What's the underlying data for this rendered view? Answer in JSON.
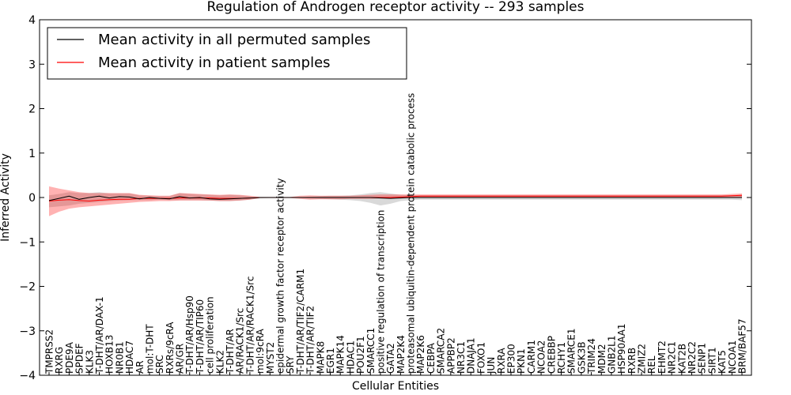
{
  "chart_data": {
    "type": "line",
    "title": "Regulation of Androgen receptor activity -- 293 samples",
    "xlabel": "Cellular Entities",
    "ylabel": "Inferred Activity",
    "ylim": [
      -4,
      4
    ],
    "yticks": [
      "4",
      "3",
      "2",
      "1",
      "0",
      "−1",
      "−2",
      "−3",
      "−4"
    ],
    "categories": [
      "TMPRSS2",
      "RXRG",
      "PDE9A",
      "SPDEF",
      "KLK3",
      "T-DHT/AR/DAX-1",
      "HOXB13",
      "NR0B1",
      "HDAC7",
      "AR",
      "mol:T-DHT",
      "SRC",
      "RXRs/9cRA",
      "AR/GR",
      "T-DHT/AR/Hsp90",
      "T-DHT/AR/TIP60",
      "cell proliferation",
      "KLK2",
      "T-DHT/AR",
      "AR/RACK1/Src",
      "T-DHT/AR/RACK1/Src",
      "mol:9cRA",
      "MYST2",
      "epidermal growth factor receptor activity",
      "SRY",
      "T-DHT/AR/TIF2/CARM1",
      "T-DHT/AR/TIF2",
      "MAPK8",
      "EGR1",
      "MAPK14",
      "HDAC1",
      "POU2F1",
      "SMARCC1",
      "positive regulation of transcription",
      "GATA2",
      "MAP2K4",
      "proteasomal ubiquitin-dependent protein catabolic process",
      "MAP2K6",
      "CEBPA",
      "SMARCA2",
      "APPBP2",
      "NR3C1",
      "DNAJA1",
      "FOXO1",
      "JUN",
      "RXRA",
      "EP300",
      "PKN1",
      "CARM1",
      "NCOA2",
      "CREBBP",
      "RCHY1",
      "SMARCE1",
      "GSK3B",
      "TRIM24",
      "MDM2",
      "GNB2L1",
      "HSP90AA1",
      "RXRB",
      "ZMIZ2",
      "REL",
      "EHMT2",
      "NR2C1",
      "KAT2B",
      "NR2C2",
      "SENP1",
      "SIRT1",
      "KAT5",
      "NCOA1",
      "BRM/BAF57"
    ],
    "series": [
      {
        "name": "Mean activity in all permuted samples",
        "color": "#000000",
        "values": [
          -0.07,
          -0.02,
          0.03,
          -0.04,
          0.0,
          0.03,
          -0.01,
          0.02,
          0.01,
          -0.03,
          0.0,
          -0.02,
          -0.03,
          0.02,
          -0.01,
          0.0,
          -0.03,
          -0.04,
          -0.03,
          -0.02,
          -0.01,
          0.0,
          0.0,
          0.0,
          0.0,
          0.0,
          0.0,
          0.0,
          0.0,
          0.0,
          0.0,
          0.0,
          0.0,
          -0.01,
          -0.02,
          -0.01,
          0.0,
          0.0,
          0.0,
          0.0,
          0.0,
          0.0,
          0.0,
          0.0,
          0.0,
          0.0,
          0.0,
          0.0,
          0.0,
          0.0,
          0.0,
          0.0,
          0.0,
          0.0,
          0.0,
          0.0,
          0.0,
          0.0,
          0.0,
          0.0,
          0.0,
          0.0,
          0.0,
          0.0,
          0.0,
          0.0,
          0.0,
          0.0,
          0.0,
          0.0
        ],
        "lower": [
          -0.22,
          -0.2,
          -0.18,
          -0.14,
          -0.12,
          -0.1,
          -0.08,
          -0.07,
          -0.06,
          -0.06,
          -0.06,
          -0.05,
          -0.06,
          -0.06,
          -0.06,
          -0.06,
          -0.07,
          -0.08,
          -0.08,
          -0.07,
          -0.05,
          -0.02,
          -0.01,
          -0.01,
          -0.01,
          -0.01,
          -0.02,
          -0.03,
          -0.04,
          -0.05,
          -0.06,
          -0.08,
          -0.12,
          -0.18,
          -0.14,
          -0.08,
          -0.06,
          -0.05,
          -0.05,
          -0.05,
          -0.05,
          -0.05,
          -0.05,
          -0.05,
          -0.05,
          -0.05,
          -0.05,
          -0.05,
          -0.05,
          -0.05,
          -0.05,
          -0.05,
          -0.05,
          -0.05,
          -0.05,
          -0.05,
          -0.05,
          -0.05,
          -0.05,
          -0.05,
          -0.05,
          -0.05,
          -0.05,
          -0.05,
          -0.05,
          -0.05,
          -0.05,
          -0.05,
          -0.05,
          -0.06
        ],
        "upper": [
          0.05,
          0.08,
          0.12,
          0.1,
          0.1,
          0.12,
          0.09,
          0.09,
          0.09,
          0.05,
          0.04,
          0.03,
          0.03,
          0.1,
          0.08,
          0.07,
          0.06,
          0.05,
          0.06,
          0.05,
          0.03,
          0.01,
          0.01,
          0.01,
          0.01,
          0.01,
          0.02,
          0.03,
          0.04,
          0.04,
          0.05,
          0.07,
          0.1,
          0.12,
          0.09,
          0.06,
          0.05,
          0.05,
          0.05,
          0.05,
          0.05,
          0.05,
          0.05,
          0.05,
          0.05,
          0.05,
          0.05,
          0.05,
          0.05,
          0.05,
          0.05,
          0.05,
          0.05,
          0.05,
          0.05,
          0.05,
          0.05,
          0.05,
          0.05,
          0.05,
          0.05,
          0.05,
          0.05,
          0.05,
          0.05,
          0.05,
          0.05,
          0.05,
          0.05,
          0.06
        ]
      },
      {
        "name": "Mean activity in patient samples",
        "color": "#ff0000",
        "values": [
          -0.08,
          -0.06,
          -0.05,
          -0.07,
          -0.08,
          -0.06,
          -0.05,
          -0.04,
          -0.04,
          -0.02,
          -0.02,
          -0.02,
          -0.02,
          -0.01,
          -0.01,
          -0.01,
          -0.01,
          -0.02,
          -0.02,
          -0.02,
          -0.01,
          0.0,
          0.0,
          0.0,
          0.0,
          0.0,
          0.0,
          0.0,
          0.0,
          0.0,
          0.0,
          0.0,
          0.0,
          0.0,
          0.0,
          0.01,
          0.02,
          0.03,
          0.03,
          0.03,
          0.03,
          0.03,
          0.03,
          0.03,
          0.03,
          0.03,
          0.03,
          0.03,
          0.03,
          0.03,
          0.03,
          0.03,
          0.03,
          0.03,
          0.03,
          0.03,
          0.03,
          0.03,
          0.03,
          0.03,
          0.03,
          0.03,
          0.03,
          0.03,
          0.03,
          0.03,
          0.03,
          0.03,
          0.04,
          0.05
        ],
        "lower": [
          -0.42,
          -0.32,
          -0.25,
          -0.22,
          -0.2,
          -0.18,
          -0.16,
          -0.14,
          -0.12,
          -0.1,
          -0.09,
          -0.08,
          -0.08,
          -0.07,
          -0.07,
          -0.07,
          -0.07,
          -0.08,
          -0.08,
          -0.07,
          -0.05,
          -0.01,
          -0.01,
          -0.01,
          -0.01,
          -0.03,
          -0.05,
          -0.04,
          -0.04,
          -0.04,
          -0.03,
          -0.03,
          -0.03,
          -0.02,
          -0.02,
          -0.02,
          -0.01,
          -0.01,
          -0.01,
          -0.01,
          -0.01,
          -0.01,
          -0.01,
          -0.01,
          -0.01,
          -0.01,
          -0.01,
          -0.01,
          -0.01,
          -0.01,
          -0.01,
          -0.01,
          -0.01,
          -0.01,
          -0.01,
          -0.01,
          -0.01,
          -0.01,
          -0.01,
          -0.01,
          -0.01,
          -0.01,
          -0.01,
          -0.01,
          -0.01,
          -0.01,
          -0.01,
          -0.01,
          0.0,
          -0.01
        ],
        "upper": [
          0.25,
          0.2,
          0.16,
          0.12,
          0.1,
          0.1,
          0.1,
          0.1,
          0.1,
          0.06,
          0.05,
          0.04,
          0.04,
          0.1,
          0.09,
          0.08,
          0.07,
          0.06,
          0.07,
          0.06,
          0.04,
          0.01,
          0.01,
          0.01,
          0.01,
          0.04,
          0.05,
          0.04,
          0.04,
          0.04,
          0.04,
          0.05,
          0.06,
          0.07,
          0.07,
          0.07,
          0.07,
          0.07,
          0.07,
          0.07,
          0.07,
          0.07,
          0.07,
          0.07,
          0.07,
          0.07,
          0.07,
          0.07,
          0.07,
          0.07,
          0.07,
          0.07,
          0.07,
          0.07,
          0.07,
          0.07,
          0.07,
          0.07,
          0.07,
          0.07,
          0.07,
          0.07,
          0.07,
          0.07,
          0.07,
          0.07,
          0.07,
          0.07,
          0.08,
          0.09
        ]
      }
    ],
    "legend_position": "top-left"
  }
}
